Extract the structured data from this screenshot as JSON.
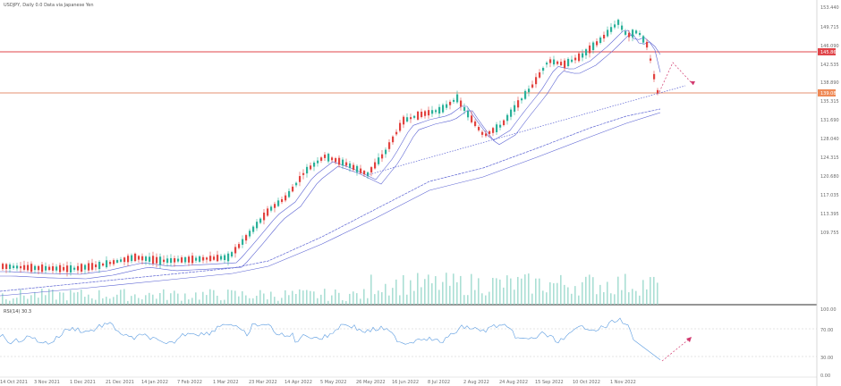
{
  "chart_header": {
    "title": "USDJPY, Daily  0.0 Data via Japanese Yen"
  },
  "price_axis": {
    "ticks": [
      "153.440",
      "149.715",
      "146.090",
      "142.535",
      "138.890",
      "135.315",
      "131.690",
      "128.040",
      "124.315",
      "120.680",
      "117.035",
      "113.395",
      "109.755"
    ],
    "level_labels": [
      "145.865",
      "139.080"
    ]
  },
  "indicator": {
    "title": "RSI(14)  30.3",
    "ticks": [
      "100.00",
      "70.00",
      "30.00",
      "0.00"
    ]
  },
  "date_axis": {
    "labels": [
      "14 Oct 2021",
      "3 Nov 2021",
      "1 Dec 2021",
      "21 Dec 2021",
      "14 Jan 2022",
      "7 Feb 2022",
      "1 Mar 2022",
      "23 Mar 2022",
      "14 Apr 2022",
      "5 May 2022",
      "26 May 2022",
      "16 Jun 2022",
      "8 Jul 2022",
      "2 Aug 2022",
      "24 Aug 2022",
      "15 Sep 2022",
      "10 Oct 2022",
      "1 Nov 2022"
    ]
  },
  "colors": {
    "up": "#2bb19a",
    "down": "#e2433f",
    "resistance": "#e0454a",
    "support": "#e9a88e",
    "ma": "#5b63d3",
    "rsi": "#5a9be0",
    "projection": "#d23a6f",
    "volume": "#8fd4c6"
  }
}
